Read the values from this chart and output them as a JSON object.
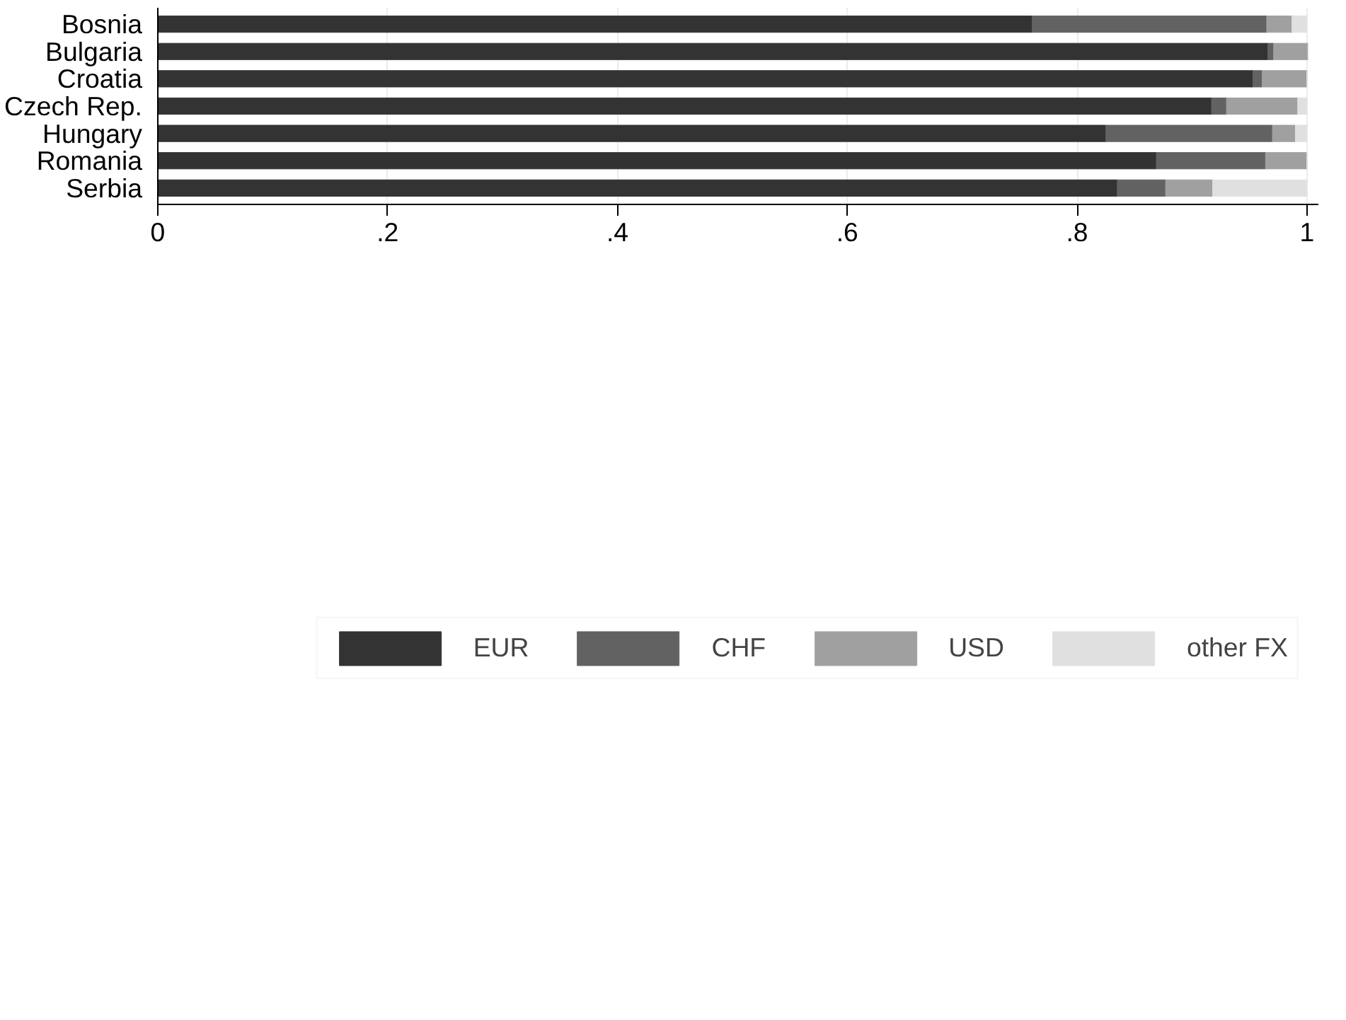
{
  "chart_data": {
    "type": "bar",
    "orientation": "horizontal",
    "stacked": true,
    "categories": [
      "Bosnia",
      "Bulgaria",
      "Croatia",
      "Czech Rep.",
      "Hungary",
      "Romania",
      "Serbia"
    ],
    "series": [
      {
        "name": "EUR",
        "color": "#333333",
        "values": [
          0.761,
          0.966,
          0.953,
          0.917,
          0.825,
          0.869,
          0.835
        ]
      },
      {
        "name": "CHF",
        "color": "#626262",
        "values": [
          0.204,
          0.005,
          0.008,
          0.013,
          0.145,
          0.095,
          0.042
        ]
      },
      {
        "name": "USD",
        "color": "#a0a0a0",
        "values": [
          0.022,
          0.03,
          0.039,
          0.062,
          0.02,
          0.036,
          0.041
        ]
      },
      {
        "name": "other FX",
        "color": "#e0e0e0",
        "values": [
          0.013,
          0,
          0,
          0.008,
          0.01,
          0,
          0.082
        ]
      }
    ],
    "xlim": [
      0,
      1.01
    ],
    "xticks": [
      0,
      {
        "value": 0.2,
        "label": ".2"
      },
      {
        "value": 0.4,
        "label": ".4"
      },
      {
        "value": 0.6,
        "label": ".6"
      },
      {
        "value": 0.8,
        "label": ".8"
      },
      1
    ],
    "grid": "x",
    "legend": "bottom"
  }
}
